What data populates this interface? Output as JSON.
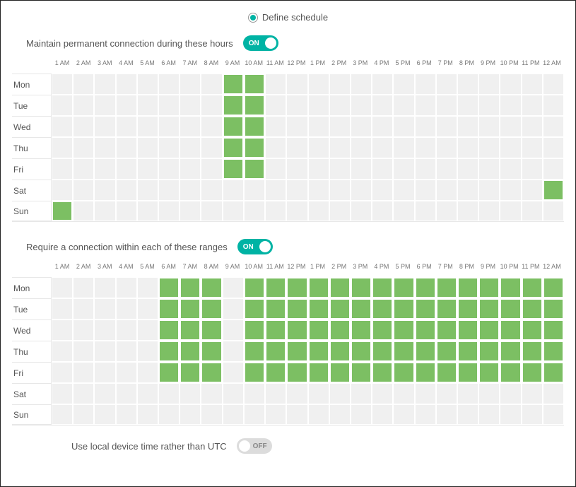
{
  "colors": {
    "accent": "#00b3a4",
    "cell_on": "#7cbf63",
    "cell_off": "#f0f0f0",
    "border": "#e7e7e7",
    "text": "#555555",
    "toggle_off_bg": "#dcdcdc"
  },
  "radio": {
    "label": "Define schedule",
    "checked": true
  },
  "hours": [
    "1 AM",
    "2 AM",
    "3 AM",
    "4 AM",
    "5 AM",
    "6 AM",
    "7 AM",
    "8 AM",
    "9 AM",
    "10 AM",
    "11 AM",
    "12 PM",
    "1 PM",
    "2 PM",
    "3 PM",
    "4 PM",
    "5 PM",
    "6 PM",
    "7 PM",
    "8 PM",
    "9 PM",
    "10 PM",
    "11 PM",
    "12 AM"
  ],
  "days": [
    "Mon",
    "Tue",
    "Wed",
    "Thu",
    "Fri",
    "Sat",
    "Sun"
  ],
  "sections": {
    "permanent": {
      "label": "Maintain permanent connection during these hours",
      "toggle_state": "on",
      "toggle_label": "ON",
      "grid": [
        [
          0,
          0,
          0,
          0,
          0,
          0,
          0,
          0,
          1,
          1,
          0,
          0,
          0,
          0,
          0,
          0,
          0,
          0,
          0,
          0,
          0,
          0,
          0,
          0
        ],
        [
          0,
          0,
          0,
          0,
          0,
          0,
          0,
          0,
          1,
          1,
          0,
          0,
          0,
          0,
          0,
          0,
          0,
          0,
          0,
          0,
          0,
          0,
          0,
          0
        ],
        [
          0,
          0,
          0,
          0,
          0,
          0,
          0,
          0,
          1,
          1,
          0,
          0,
          0,
          0,
          0,
          0,
          0,
          0,
          0,
          0,
          0,
          0,
          0,
          0
        ],
        [
          0,
          0,
          0,
          0,
          0,
          0,
          0,
          0,
          1,
          1,
          0,
          0,
          0,
          0,
          0,
          0,
          0,
          0,
          0,
          0,
          0,
          0,
          0,
          0
        ],
        [
          0,
          0,
          0,
          0,
          0,
          0,
          0,
          0,
          1,
          1,
          0,
          0,
          0,
          0,
          0,
          0,
          0,
          0,
          0,
          0,
          0,
          0,
          0,
          0
        ],
        [
          0,
          0,
          0,
          0,
          0,
          0,
          0,
          0,
          0,
          0,
          0,
          0,
          0,
          0,
          0,
          0,
          0,
          0,
          0,
          0,
          0,
          0,
          0,
          1
        ],
        [
          1,
          0,
          0,
          0,
          0,
          0,
          0,
          0,
          0,
          0,
          0,
          0,
          0,
          0,
          0,
          0,
          0,
          0,
          0,
          0,
          0,
          0,
          0,
          0
        ]
      ]
    },
    "require": {
      "label": "Require a connection within each of these ranges",
      "toggle_state": "on",
      "toggle_label": "ON",
      "grid": [
        [
          0,
          0,
          0,
          0,
          0,
          1,
          1,
          1,
          0,
          1,
          1,
          1,
          1,
          1,
          1,
          1,
          1,
          1,
          1,
          1,
          1,
          1,
          1,
          1
        ],
        [
          0,
          0,
          0,
          0,
          0,
          1,
          1,
          1,
          0,
          1,
          1,
          1,
          1,
          1,
          1,
          1,
          1,
          1,
          1,
          1,
          1,
          1,
          1,
          1
        ],
        [
          0,
          0,
          0,
          0,
          0,
          1,
          1,
          1,
          0,
          1,
          1,
          1,
          1,
          1,
          1,
          1,
          1,
          1,
          1,
          1,
          1,
          1,
          1,
          1
        ],
        [
          0,
          0,
          0,
          0,
          0,
          1,
          1,
          1,
          0,
          1,
          1,
          1,
          1,
          1,
          1,
          1,
          1,
          1,
          1,
          1,
          1,
          1,
          1,
          1
        ],
        [
          0,
          0,
          0,
          0,
          0,
          1,
          1,
          1,
          0,
          1,
          1,
          1,
          1,
          1,
          1,
          1,
          1,
          1,
          1,
          1,
          1,
          1,
          1,
          1
        ],
        [
          0,
          0,
          0,
          0,
          0,
          0,
          0,
          0,
          0,
          0,
          0,
          0,
          0,
          0,
          0,
          0,
          0,
          0,
          0,
          0,
          0,
          0,
          0,
          0
        ],
        [
          0,
          0,
          0,
          0,
          0,
          0,
          0,
          0,
          0,
          0,
          0,
          0,
          0,
          0,
          0,
          0,
          0,
          0,
          0,
          0,
          0,
          0,
          0,
          0
        ]
      ]
    }
  },
  "local_time": {
    "label": "Use local device time rather than UTC",
    "toggle_state": "off",
    "toggle_label": "OFF"
  }
}
